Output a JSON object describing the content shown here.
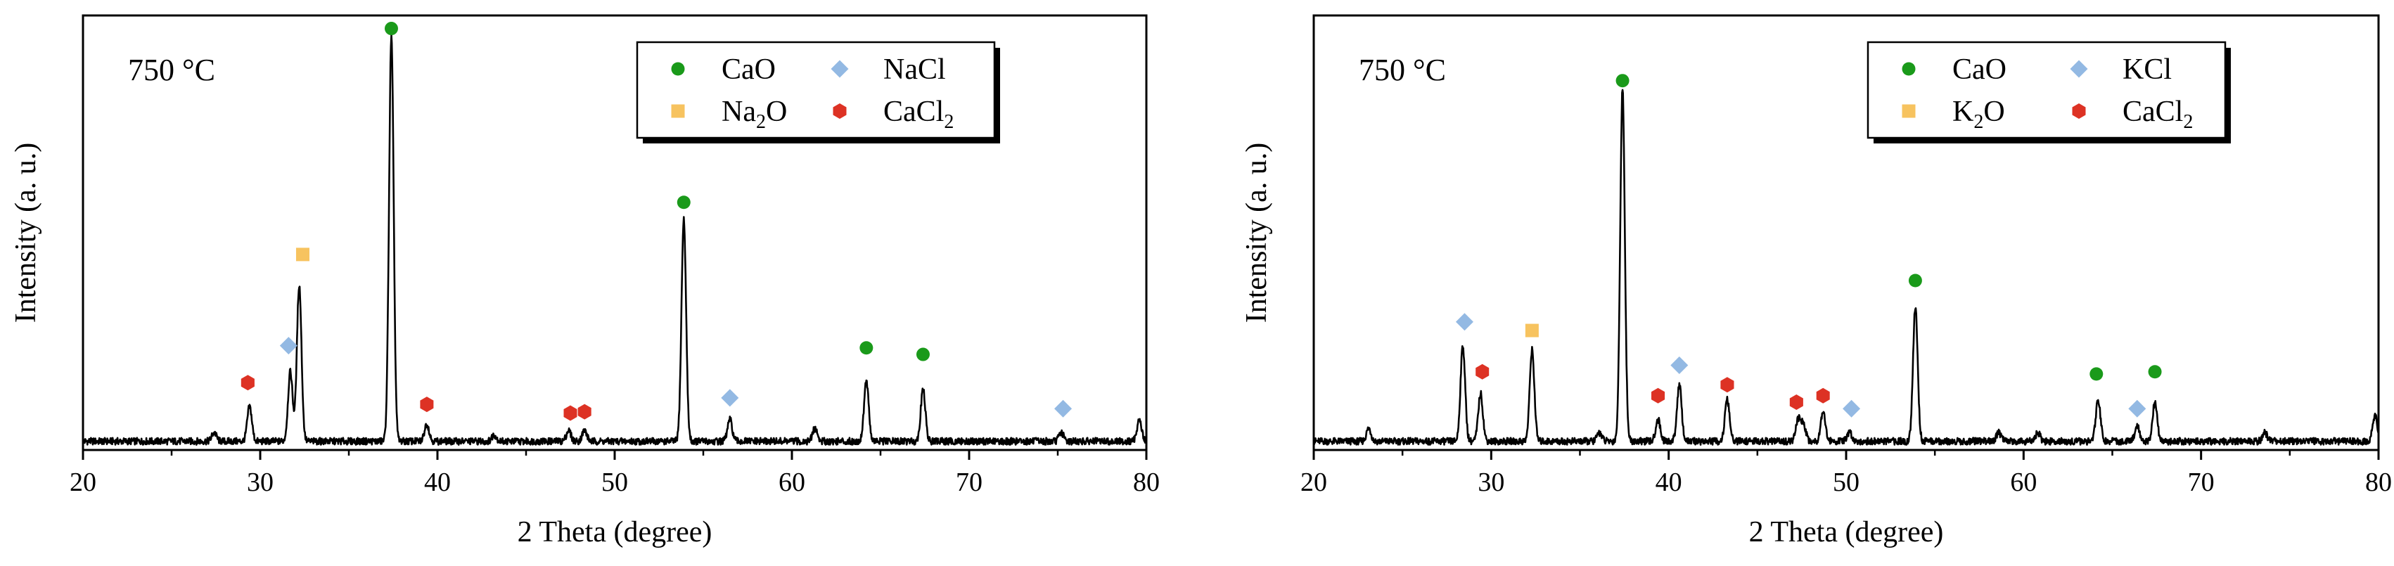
{
  "chart_data": [
    {
      "type": "line",
      "annotation": "750 °C",
      "xlabel": "2 Theta (degree)",
      "ylabel": "Intensity (a. u.)",
      "xlim": [
        20,
        80
      ],
      "ylim": [
        0,
        100
      ],
      "x_ticks": [
        "20",
        "30",
        "40",
        "50",
        "60",
        "70",
        "80"
      ],
      "legend_position": "top-right",
      "legend": [
        {
          "name": "CaO",
          "sub": "",
          "tail": "",
          "marker": "circle",
          "color": "#1a9a1a"
        },
        {
          "name": "Na",
          "sub": "2",
          "tail": "O",
          "marker": "square",
          "color": "#f7c35f"
        },
        {
          "name": "NaCl",
          "sub": "",
          "tail": "",
          "marker": "diamond",
          "color": "#93b9e3"
        },
        {
          "name": "CaCl",
          "sub": "2",
          "tail": "",
          "marker": "hexagon",
          "color": "#dd3224"
        }
      ],
      "baseline": 2,
      "noise": 0.8,
      "peaks": [
        {
          "x": 27.4,
          "h": 2
        },
        {
          "x": 29.4,
          "h": 8
        },
        {
          "x": 31.7,
          "h": 16
        },
        {
          "x": 32.2,
          "h": 36
        },
        {
          "x": 37.4,
          "h": 93
        },
        {
          "x": 39.4,
          "h": 4
        },
        {
          "x": 43.2,
          "h": 1.5
        },
        {
          "x": 47.4,
          "h": 2.5
        },
        {
          "x": 48.3,
          "h": 2.5
        },
        {
          "x": 53.9,
          "h": 51
        },
        {
          "x": 56.5,
          "h": 5
        },
        {
          "x": 61.3,
          "h": 3
        },
        {
          "x": 64.2,
          "h": 14
        },
        {
          "x": 67.4,
          "h": 12
        },
        {
          "x": 75.2,
          "h": 2
        },
        {
          "x": 79.6,
          "h": 5
        }
      ],
      "markers": [
        {
          "type": "hexagon",
          "x": 29.3,
          "y": 15.5
        },
        {
          "type": "diamond",
          "x": 31.6,
          "y": 24
        },
        {
          "type": "square",
          "x": 32.4,
          "y": 45
        },
        {
          "type": "circle",
          "x": 37.4,
          "y": 97
        },
        {
          "type": "hexagon",
          "x": 39.4,
          "y": 10.5
        },
        {
          "type": "hexagon",
          "x": 47.5,
          "y": 8.5
        },
        {
          "type": "hexagon",
          "x": 48.3,
          "y": 8.8
        },
        {
          "type": "circle",
          "x": 53.9,
          "y": 57
        },
        {
          "type": "diamond",
          "x": 56.5,
          "y": 12
        },
        {
          "type": "circle",
          "x": 64.2,
          "y": 23.5
        },
        {
          "type": "circle",
          "x": 67.4,
          "y": 22
        },
        {
          "type": "diamond",
          "x": 75.3,
          "y": 9.5
        }
      ]
    },
    {
      "type": "line",
      "annotation": "750 °C",
      "xlabel": "2 Theta (degree)",
      "ylabel": "Intensity (a. u.)",
      "xlim": [
        20,
        80
      ],
      "ylim": [
        0,
        100
      ],
      "x_ticks": [
        "20",
        "30",
        "40",
        "50",
        "60",
        "70",
        "80"
      ],
      "legend_position": "top-right",
      "legend": [
        {
          "name": "CaO",
          "sub": "",
          "tail": "",
          "marker": "circle",
          "color": "#1a9a1a"
        },
        {
          "name": "K",
          "sub": "2",
          "tail": "O",
          "marker": "square",
          "color": "#f7c35f"
        },
        {
          "name": "KCl",
          "sub": "",
          "tail": "",
          "marker": "diamond",
          "color": "#93b9e3"
        },
        {
          "name": "CaCl",
          "sub": "2",
          "tail": "",
          "marker": "hexagon",
          "color": "#dd3224"
        }
      ],
      "baseline": 2,
      "noise": 0.8,
      "peaks": [
        {
          "x": 23.1,
          "h": 3
        },
        {
          "x": 28.4,
          "h": 22
        },
        {
          "x": 29.4,
          "h": 11
        },
        {
          "x": 32.3,
          "h": 21
        },
        {
          "x": 36.1,
          "h": 2
        },
        {
          "x": 37.4,
          "h": 81
        },
        {
          "x": 39.4,
          "h": 5
        },
        {
          "x": 40.6,
          "h": 13
        },
        {
          "x": 43.3,
          "h": 9.5
        },
        {
          "x": 47.3,
          "h": 5
        },
        {
          "x": 47.6,
          "h": 4
        },
        {
          "x": 48.7,
          "h": 7
        },
        {
          "x": 50.2,
          "h": 2
        },
        {
          "x": 53.9,
          "h": 31
        },
        {
          "x": 58.6,
          "h": 2
        },
        {
          "x": 60.8,
          "h": 2
        },
        {
          "x": 64.2,
          "h": 9.5
        },
        {
          "x": 66.4,
          "h": 3.5
        },
        {
          "x": 67.4,
          "h": 9
        },
        {
          "x": 73.6,
          "h": 2
        },
        {
          "x": 79.8,
          "h": 6
        }
      ],
      "markers": [
        {
          "type": "diamond",
          "x": 28.5,
          "y": 29.5
        },
        {
          "type": "hexagon",
          "x": 29.5,
          "y": 18
        },
        {
          "type": "square",
          "x": 32.3,
          "y": 27.5
        },
        {
          "type": "circle",
          "x": 37.4,
          "y": 85
        },
        {
          "type": "hexagon",
          "x": 39.4,
          "y": 12.5
        },
        {
          "type": "diamond",
          "x": 40.6,
          "y": 19.5
        },
        {
          "type": "hexagon",
          "x": 43.3,
          "y": 15
        },
        {
          "type": "hexagon",
          "x": 47.2,
          "y": 11
        },
        {
          "type": "hexagon",
          "x": 48.7,
          "y": 12.5
        },
        {
          "type": "diamond",
          "x": 50.3,
          "y": 9.5
        },
        {
          "type": "circle",
          "x": 53.9,
          "y": 39
        },
        {
          "type": "circle",
          "x": 64.1,
          "y": 17.5
        },
        {
          "type": "diamond",
          "x": 66.4,
          "y": 9.5
        },
        {
          "type": "circle",
          "x": 67.4,
          "y": 18
        }
      ]
    }
  ]
}
